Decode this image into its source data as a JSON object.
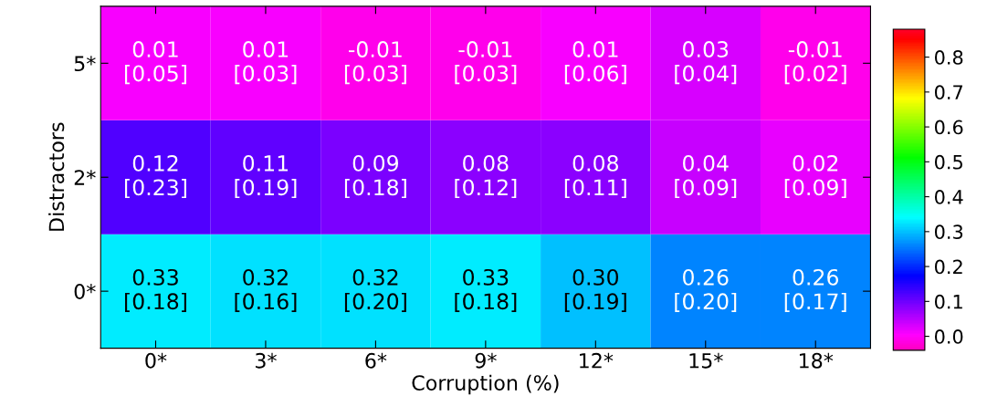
{
  "chart_data": {
    "type": "heatmap",
    "xlabel": "Corruption (%)",
    "ylabel": "Distractors",
    "categories": [
      "0*",
      "3*",
      "6*",
      "9*",
      "12*",
      "15*",
      "18*"
    ],
    "y_categories": [
      "5*",
      "2*",
      "0*"
    ],
    "cells": [
      [
        0.01,
        0.01,
        -0.01,
        -0.01,
        0.01,
        0.03,
        -0.01
      ],
      [
        0.12,
        0.11,
        0.09,
        0.08,
        0.08,
        0.04,
        0.02
      ],
      [
        0.33,
        0.32,
        0.32,
        0.33,
        0.3,
        0.26,
        0.26
      ]
    ],
    "cell_labels": [
      [
        "0.01\n[0.05]",
        "0.01\n[0.03]",
        "-0.01\n[0.03]",
        "-0.01\n[0.03]",
        "0.01\n[0.06]",
        "0.03\n[0.04]",
        "-0.01\n[0.02]"
      ],
      [
        "0.12\n[0.23]",
        "0.11\n[0.19]",
        "0.09\n[0.18]",
        "0.08\n[0.12]",
        "0.08\n[0.11]",
        "0.04\n[0.09]",
        "0.02\n[0.09]"
      ],
      [
        "0.33\n[0.18]",
        "0.32\n[0.16]",
        "0.32\n[0.20]",
        "0.33\n[0.18]",
        "0.30\n[0.19]",
        "0.26\n[0.20]",
        "0.26\n[0.17]"
      ]
    ],
    "clim": [
      -0.04,
      0.88
    ],
    "cticks": [
      {
        "value": 0,
        "label": "0.0"
      },
      0.1,
      0.2,
      0.3,
      0.4,
      0.5,
      0.6,
      0.7,
      0.8
    ]
  }
}
